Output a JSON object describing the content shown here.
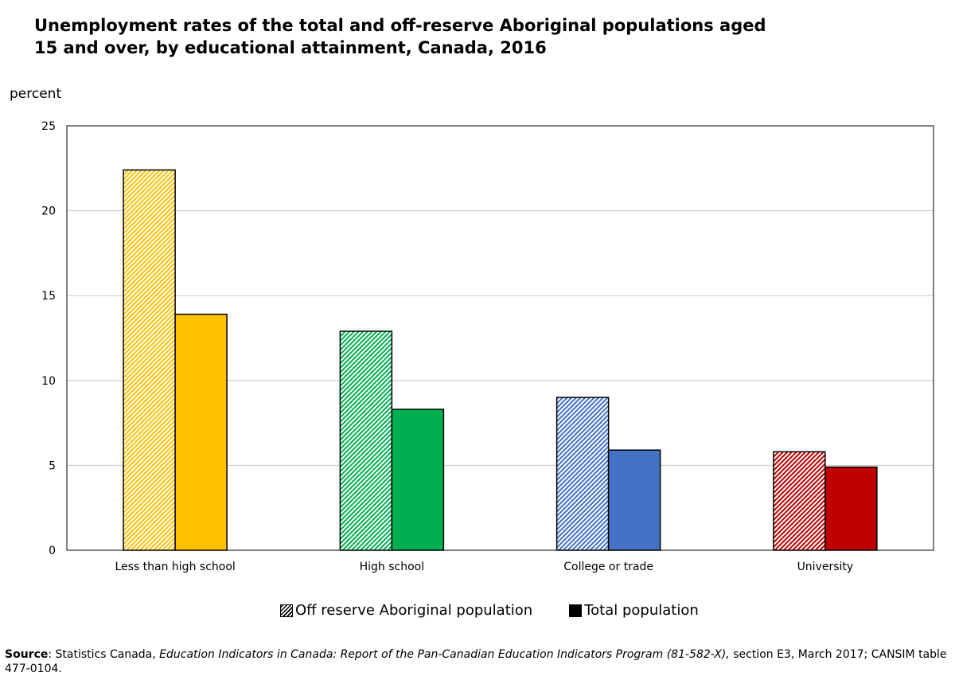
{
  "title": {
    "line1": "Unemployment rates of the total and off-reserve Aboriginal populations aged",
    "line2": "15 and over, by educational attainment, Canada, 2016"
  },
  "chart_data": {
    "type": "bar",
    "title": "Unemployment rates of the total and off-reserve Aboriginal populations aged 15 and over, by educational attainment, Canada, 2016",
    "ylabel": "percent",
    "xlabel": "",
    "ylim": [
      0,
      25
    ],
    "yticks": [
      0,
      5,
      10,
      15,
      20,
      25
    ],
    "grid": true,
    "legend_position": "bottom",
    "categories": [
      "Less than high school",
      "High school",
      "College or trade",
      "University"
    ],
    "category_colors": [
      "#ffc000",
      "#00b050",
      "#4472c4",
      "#c00000"
    ],
    "category_light_colors": [
      "#ffe080",
      "#80d8a8",
      "#a2b9e2",
      "#e08080"
    ],
    "series": [
      {
        "name": "Off reserve Aboriginal population",
        "style": "hatched",
        "values": [
          22.4,
          12.9,
          9.0,
          5.8
        ]
      },
      {
        "name": "Total population",
        "style": "solid",
        "values": [
          13.9,
          8.3,
          5.9,
          4.9
        ]
      }
    ]
  },
  "source": {
    "label": "Source",
    "text_before": ": Statistics Canada, ",
    "italic": "Education Indicators in Canada: Report of the Pan-Canadian Education Indicators Program (81-582-X),",
    "text_after": " section E3, March 2017; CANSIM table 477-0104."
  }
}
